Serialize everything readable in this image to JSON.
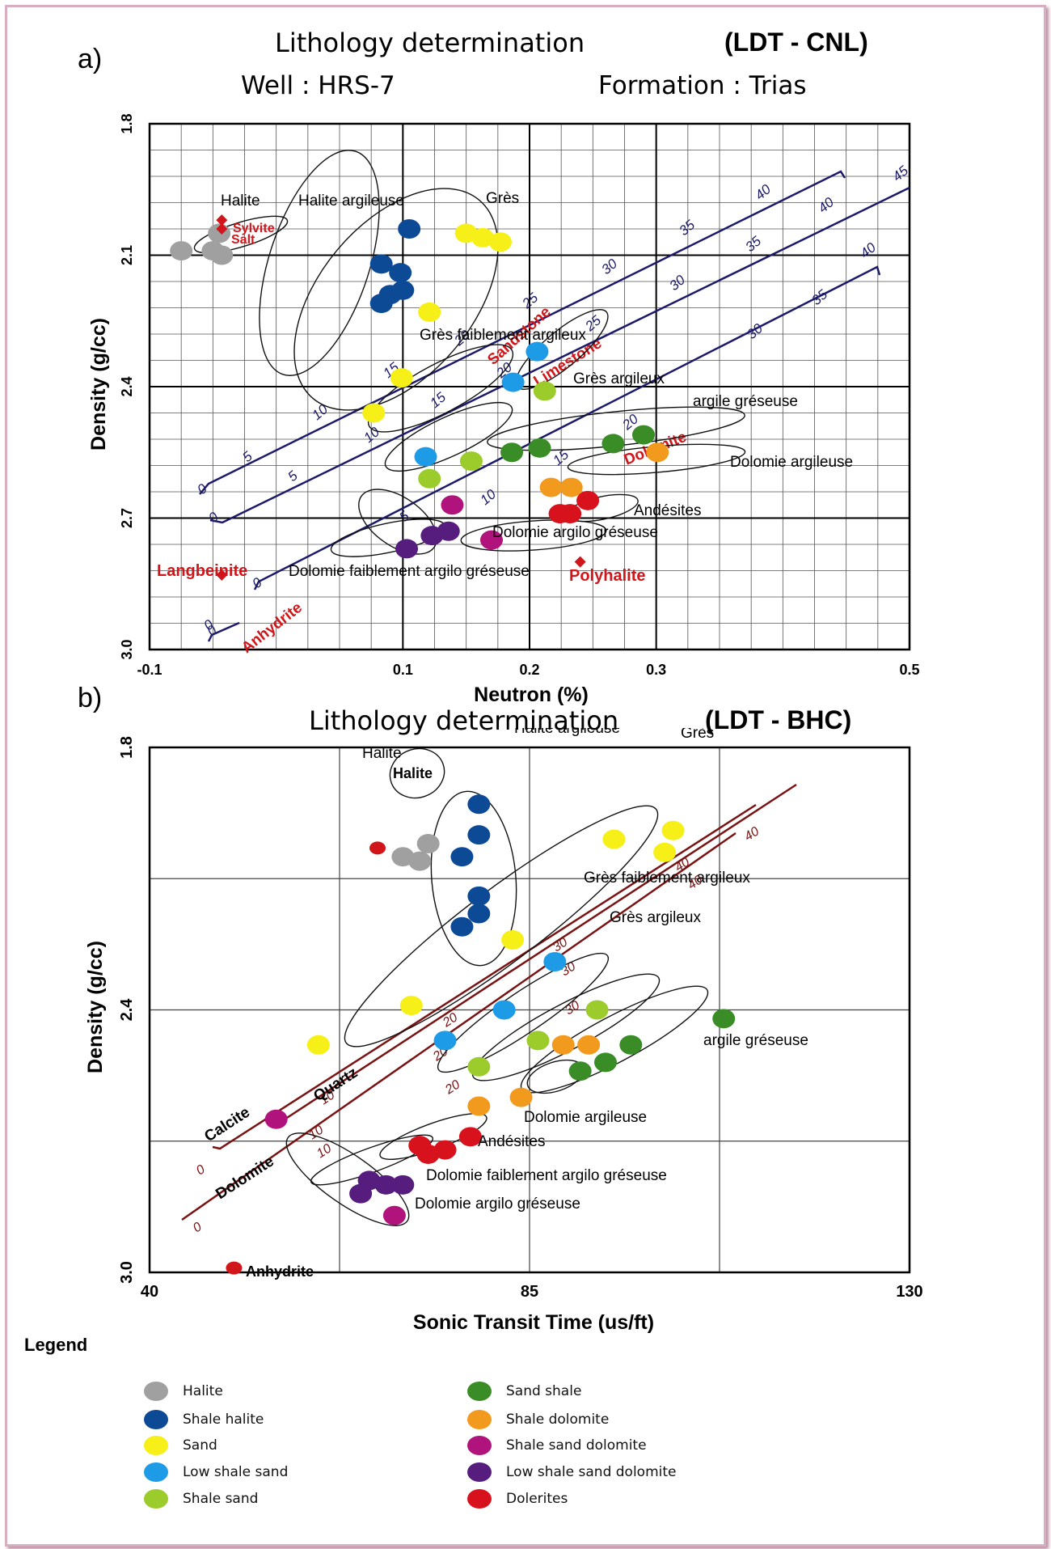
{
  "panel_a": {
    "label": "a)",
    "title": "Lithology determination",
    "tag": "(LDT - CNL)",
    "well": "Well : HRS-7",
    "formation": "Formation : Trias"
  },
  "panel_b": {
    "label": "b)",
    "title": "Lithology determination",
    "tag": "(LDT - BHC)"
  },
  "colors": {
    "Halite": "#a0a0a0",
    "Shale halite": "#0d4a96",
    "Sand": "#f6ef18",
    "Low shale sand": "#1e9be6",
    "Shale sand": "#9ccc2c",
    "Sand shale": "#3a8c26",
    "Shale dolomite": "#f29a1e",
    "Shale sand dolomite": "#b0147c",
    "Low shale sand dolomite": "#561c7e",
    "Dolerites": "#d8121c",
    "line": "#1c1a6a",
    "line_b": "#7a1414",
    "mineral": "#d0161a"
  },
  "legend": {
    "title": "Legend",
    "items": [
      {
        "label": "Halite",
        "color": "#a0a0a0"
      },
      {
        "label": "Shale halite",
        "color": "#0d4a96"
      },
      {
        "label": "Sand",
        "color": "#f6ef18"
      },
      {
        "label": "Low shale sand",
        "color": "#1e9be6"
      },
      {
        "label": "Shale sand",
        "color": "#9ccc2c"
      },
      {
        "label": "Sand shale",
        "color": "#3a8c26"
      },
      {
        "label": "Shale dolomite",
        "color": "#f29a1e"
      },
      {
        "label": "Shale sand dolomite",
        "color": "#b0147c"
      },
      {
        "label": "Low shale sand dolomite",
        "color": "#561c7e"
      },
      {
        "label": "Dolerites",
        "color": "#d8121c"
      }
    ]
  },
  "chart_data": [
    {
      "type": "scatter",
      "title": "Lithology determination (LDT - CNL)",
      "xlabel": "Neutron (%)",
      "ylabel": "Density (g/cc)",
      "xlim": [
        -0.1,
        0.5
      ],
      "ylim": [
        3.0,
        1.8
      ],
      "x_ticks": [
        "-0.1",
        "0.1",
        "0.2",
        "0.3",
        "0.5"
      ],
      "y_ticks": [
        "1.8",
        "2.1",
        "2.4",
        "2.7",
        "3.0"
      ],
      "grid": true,
      "series": [
        {
          "name": "Halite",
          "points": [
            [
              -0.075,
              2.09
            ],
            [
              -0.045,
              2.05
            ],
            [
              -0.05,
              2.09
            ],
            [
              -0.043,
              2.1
            ]
          ]
        },
        {
          "name": "Shale halite",
          "points": [
            [
              0.105,
              2.04
            ],
            [
              0.083,
              2.12
            ],
            [
              0.098,
              2.14
            ],
            [
              0.09,
              2.19
            ],
            [
              0.1,
              2.18
            ],
            [
              0.083,
              2.21
            ]
          ]
        },
        {
          "name": "Sand",
          "points": [
            [
              0.15,
              2.05
            ],
            [
              0.163,
              2.06
            ],
            [
              0.177,
              2.07
            ],
            [
              0.121,
              2.23
            ],
            [
              0.099,
              2.38
            ],
            [
              0.077,
              2.46
            ]
          ]
        },
        {
          "name": "Low shale sand",
          "points": [
            [
              0.206,
              2.32
            ],
            [
              0.187,
              2.39
            ],
            [
              0.118,
              2.56
            ]
          ]
        },
        {
          "name": "Shale sand",
          "points": [
            [
              0.212,
              2.41
            ],
            [
              0.154,
              2.57
            ],
            [
              0.121,
              2.61
            ]
          ]
        },
        {
          "name": "Sand shale",
          "points": [
            [
              0.186,
              2.55
            ],
            [
              0.208,
              2.54
            ],
            [
              0.266,
              2.53
            ],
            [
              0.29,
              2.51
            ]
          ]
        },
        {
          "name": "Shale dolomite",
          "points": [
            [
              0.217,
              2.63
            ],
            [
              0.233,
              2.63
            ],
            [
              0.301,
              2.55
            ]
          ]
        },
        {
          "name": "Shale sand dolomite",
          "points": [
            [
              0.139,
              2.67
            ],
            [
              0.17,
              2.75
            ]
          ]
        },
        {
          "name": "Low shale sand dolomite",
          "points": [
            [
              0.103,
              2.77
            ],
            [
              0.123,
              2.74
            ],
            [
              0.136,
              2.73
            ]
          ]
        },
        {
          "name": "Dolerites",
          "points": [
            [
              0.224,
              2.69
            ],
            [
              0.232,
              2.69
            ],
            [
              0.246,
              2.66
            ]
          ]
        }
      ],
      "minerals": [
        {
          "label": "Salt",
          "x": -0.043,
          "y": 2.04
        },
        {
          "label": "Sylvite",
          "x": -0.043,
          "y": 2.02
        },
        {
          "label": "Langbeinite",
          "x": -0.043,
          "y": 2.83
        },
        {
          "label": "Polyhalite",
          "x": 0.24,
          "y": 2.8
        }
      ],
      "group_labels": [
        "Halite",
        "Halite argileuse",
        "Grès",
        "Grès faiblement argileux",
        "Grès argileux",
        "argile gréseuse",
        "Dolomie argileuse",
        "Andésites",
        "Dolomie argilo gréseuse",
        "Dolomie faiblement argilo gréseuse"
      ],
      "matrix_lines": [
        "Sandstone",
        "Limestone",
        "Dolomite",
        "Anhydrite"
      ]
    },
    {
      "type": "scatter",
      "title": "Lithology determination (LDT - BHC)",
      "xlabel": "Sonic Transit Time (us/ft)",
      "ylabel": "Density (g/cc)",
      "xlim": [
        40,
        130
      ],
      "ylim": [
        3.0,
        1.8
      ],
      "x_ticks": [
        "40",
        "85",
        "130"
      ],
      "y_ticks": [
        "1.8",
        "2.4",
        "3.0"
      ],
      "grid": true,
      "series": [
        {
          "name": "Halite",
          "points": [
            [
              73,
              2.02
            ],
            [
              70,
              2.05
            ],
            [
              72,
              2.06
            ]
          ]
        },
        {
          "name": "Shale halite",
          "points": [
            [
              79,
              1.93
            ],
            [
              79,
              2.0
            ],
            [
              77,
              2.05
            ],
            [
              79,
              2.14
            ],
            [
              79,
              2.18
            ],
            [
              77,
              2.21
            ]
          ]
        },
        {
          "name": "Sand",
          "points": [
            [
              102,
              1.99
            ],
            [
              95,
              2.01
            ],
            [
              101,
              2.04
            ],
            [
              83,
              2.24
            ],
            [
              71,
              2.39
            ],
            [
              60,
              2.48
            ]
          ]
        },
        {
          "name": "Low shale sand",
          "points": [
            [
              88,
              2.29
            ],
            [
              82,
              2.4
            ],
            [
              75,
              2.47
            ]
          ]
        },
        {
          "name": "Shale sand",
          "points": [
            [
              93,
              2.4
            ],
            [
              86,
              2.47
            ],
            [
              79,
              2.53
            ]
          ]
        },
        {
          "name": "Sand shale",
          "points": [
            [
              108,
              2.42
            ],
            [
              97,
              2.48
            ],
            [
              94,
              2.52
            ],
            [
              91,
              2.54
            ]
          ]
        },
        {
          "name": "Shale dolomite",
          "points": [
            [
              89,
              2.48
            ],
            [
              92,
              2.48
            ],
            [
              84,
              2.6
            ],
            [
              79,
              2.62
            ]
          ]
        },
        {
          "name": "Shale sand dolomite",
          "points": [
            [
              55,
              2.65
            ],
            [
              69,
              2.87
            ]
          ]
        },
        {
          "name": "Low shale sand dolomite",
          "points": [
            [
              66,
              2.79
            ],
            [
              68,
              2.8
            ],
            [
              70,
              2.8
            ],
            [
              65,
              2.82
            ]
          ]
        },
        {
          "name": "Dolerites",
          "points": [
            [
              72,
              2.71
            ],
            [
              73,
              2.73
            ],
            [
              75,
              2.72
            ],
            [
              78,
              2.69
            ]
          ]
        }
      ],
      "minerals": [
        {
          "label": "Halite",
          "x": 67,
          "y": 2.03
        },
        {
          "label": "Anhydrite",
          "x": 50,
          "y": 2.99
        }
      ],
      "group_labels": [
        "Halite",
        "Halite argileuse",
        "Grès",
        "Grès faiblement argileux",
        "Grès argileux",
        "argile gréseuse",
        "Dolomie argileuse",
        "Andésites",
        "Dolomie faiblement argilo gréseuse",
        "Dolomie argilo gréseuse"
      ],
      "matrix_lines": [
        "Calcite",
        "Quartz",
        "Dolomite"
      ]
    }
  ]
}
